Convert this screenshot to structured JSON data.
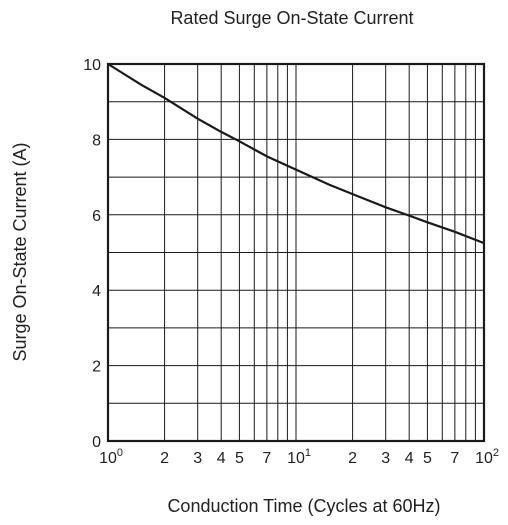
{
  "chart_data": {
    "type": "line",
    "title": "Rated Surge On-State Current",
    "xlabel": "Conduction Time  (Cycles at 60Hz)",
    "ylabel": "Surge On-State Current  (A)",
    "x_scale": "log",
    "xlim": [
      1,
      100
    ],
    "ylim": [
      0,
      10
    ],
    "grid": true,
    "x_ticks": [
      {
        "value": 1,
        "base": "10",
        "exp": "0"
      },
      {
        "value": 2,
        "base": "2",
        "exp": ""
      },
      {
        "value": 3,
        "base": "3",
        "exp": ""
      },
      {
        "value": 4,
        "base": "4",
        "exp": ""
      },
      {
        "value": 5,
        "base": "5",
        "exp": ""
      },
      {
        "value": 7,
        "base": "7",
        "exp": ""
      },
      {
        "value": 10,
        "base": "10",
        "exp": "1"
      },
      {
        "value": 20,
        "base": "2",
        "exp": ""
      },
      {
        "value": 30,
        "base": "3",
        "exp": ""
      },
      {
        "value": 40,
        "base": "4",
        "exp": ""
      },
      {
        "value": 50,
        "base": "5",
        "exp": ""
      },
      {
        "value": 70,
        "base": "7",
        "exp": ""
      },
      {
        "value": 100,
        "base": "10",
        "exp": "2"
      }
    ],
    "y_ticks": [
      {
        "value": 0,
        "label": "0"
      },
      {
        "value": 2,
        "label": "2"
      },
      {
        "value": 4,
        "label": "4"
      },
      {
        "value": 6,
        "label": "6"
      },
      {
        "value": 8,
        "label": "8"
      },
      {
        "value": 10,
        "label": "10"
      }
    ],
    "x_grid": [
      1,
      2,
      3,
      4,
      5,
      6,
      7,
      8,
      9,
      10,
      20,
      30,
      40,
      50,
      60,
      70,
      80,
      90,
      100
    ],
    "y_grid": [
      0,
      1,
      2,
      3,
      4,
      5,
      6,
      7,
      8,
      9,
      10
    ],
    "series": [
      {
        "x": [
          1,
          1.5,
          2,
          3,
          4,
          5,
          7,
          10,
          15,
          20,
          30,
          40,
          50,
          70,
          100
        ],
        "y": [
          10,
          9.45,
          9.1,
          8.55,
          8.2,
          7.95,
          7.55,
          7.2,
          6.8,
          6.55,
          6.2,
          5.98,
          5.8,
          5.55,
          5.25
        ]
      }
    ]
  }
}
